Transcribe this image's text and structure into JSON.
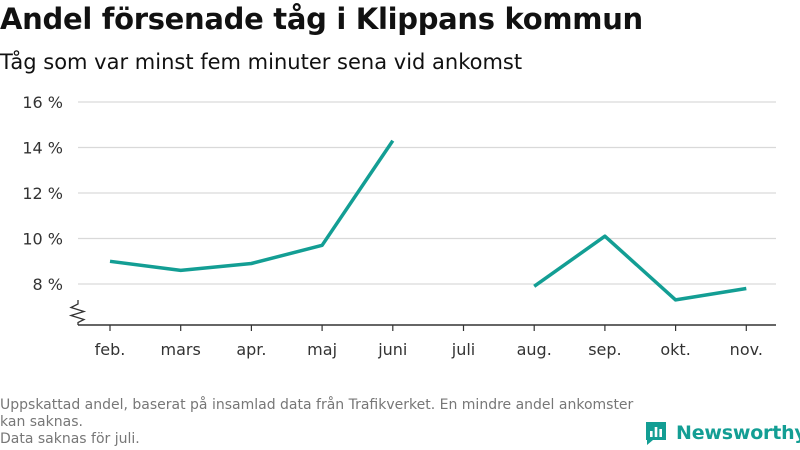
{
  "title": "Andel försenade tåg i Klippans kommun",
  "subtitle": "Tåg som var minst fem minuter sena vid ankomst",
  "chart_data": {
    "type": "line",
    "title": "Andel försenade tåg i Klippans kommun",
    "subtitle": "Tåg som var minst fem minuter sena vid ankomst",
    "categories": [
      "feb.",
      "mars",
      "apr.",
      "maj",
      "juni",
      "juli",
      "aug.",
      "sep.",
      "okt.",
      "nov."
    ],
    "series": [
      {
        "values": [
          9.0,
          8.6,
          8.9,
          9.7,
          14.3,
          null,
          7.9,
          10.1,
          7.3,
          7.8
        ]
      }
    ],
    "yticks": [
      8,
      10,
      12,
      14,
      16
    ],
    "ytick_labels": [
      "8 %",
      "10 %",
      "12 %",
      "14 %",
      "16 %"
    ],
    "ylim": [
      6.2,
      16
    ],
    "axis_break": true,
    "grid": true,
    "line_color": "#139e94"
  },
  "footnote": {
    "line1": "Uppskattad andel, baserat på insamlad data från Trafikverket. En mindre andel ankomster kan saknas.",
    "line2": "Data saknas för juli."
  },
  "logo": {
    "text": "Newsworthy",
    "icon": "bar-chart-icon",
    "color": "#139e94"
  }
}
